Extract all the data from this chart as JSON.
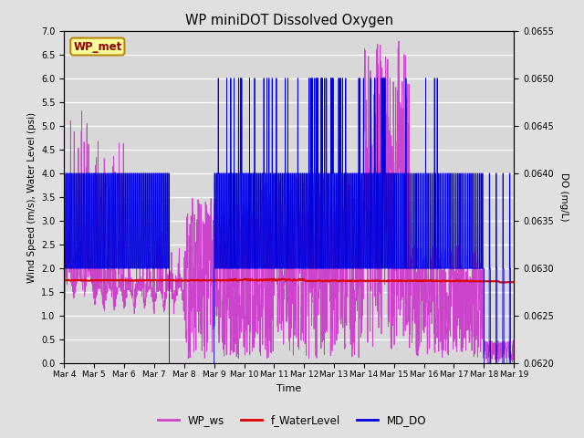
{
  "title": "WP miniDOT Dissolved Oxygen",
  "xlabel": "Time",
  "ylabel_left": "Wind Speed (m/s), Water Level (psi)",
  "ylabel_right": "DO (mg/L)",
  "annotation": "WP_met",
  "annotation_color": "#8B0000",
  "annotation_bg": "#FFFF99",
  "annotation_border": "#B8860B",
  "ylim_left": [
    0.0,
    7.0
  ],
  "ylim_right": [
    0.062,
    0.0655
  ],
  "bg_color": "#E0E0E0",
  "plot_bg_color": "#D8D8D8",
  "grid_color": "#FFFFFF",
  "wp_ws_color": "#CC44CC",
  "f_waterlevel_color": "#DD0000",
  "md_do_color": "#0000DD",
  "legend_labels": [
    "WP_ws",
    "f_WaterLevel",
    "MD_DO"
  ],
  "n_days": 15,
  "xtick_labels": [
    "Mar 4",
    "Mar 5",
    "Mar 6",
    "Mar 7",
    "Mar 8",
    "Mar 9",
    "Mar 10",
    "Mar 11",
    "Mar 12",
    "Mar 13",
    "Mar 14",
    "Mar 15",
    "Mar 16",
    "Mar 17",
    "Mar 18",
    "Mar 19"
  ]
}
